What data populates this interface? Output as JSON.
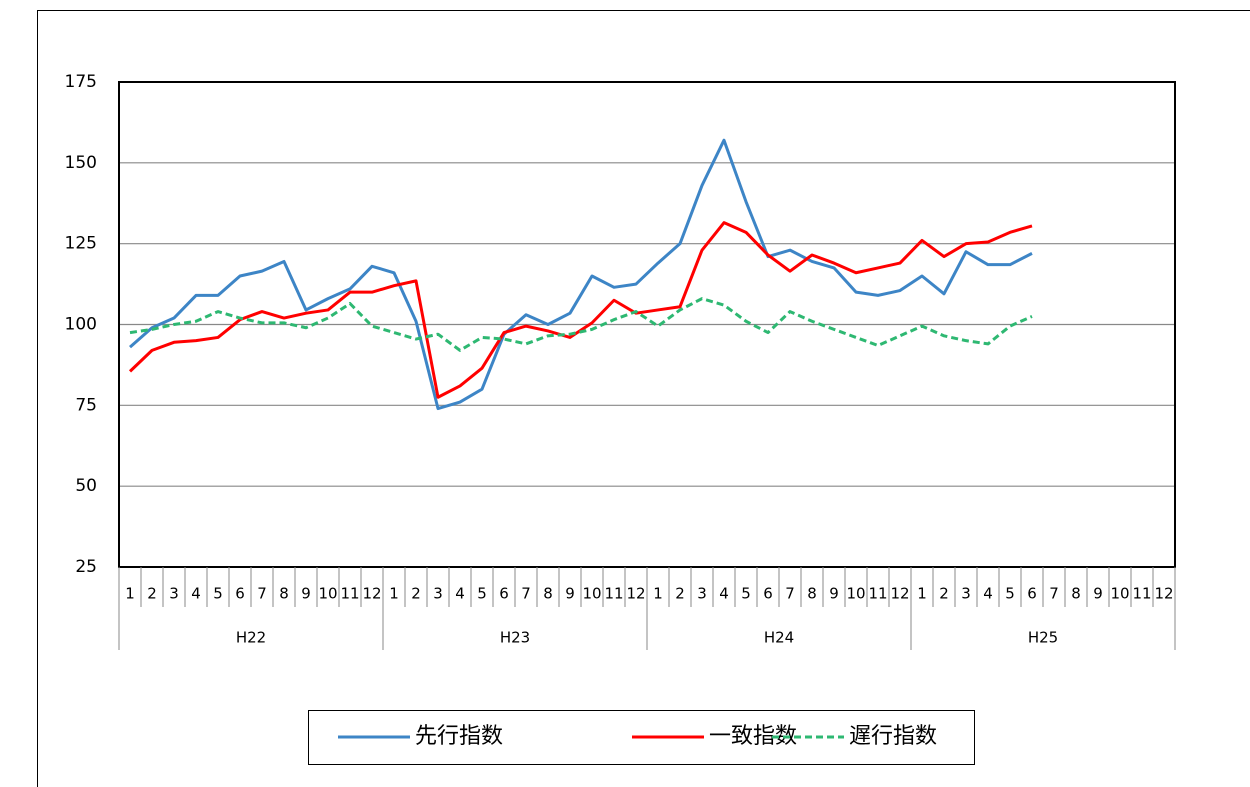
{
  "chart_data": {
    "type": "line",
    "categories": [
      "1",
      "2",
      "3",
      "4",
      "5",
      "6",
      "7",
      "8",
      "9",
      "10",
      "11",
      "12",
      "1",
      "2",
      "3",
      "4",
      "5",
      "6",
      "7",
      "8",
      "9",
      "10",
      "11",
      "12",
      "1",
      "2",
      "3",
      "4",
      "5",
      "6",
      "7",
      "8",
      "9",
      "10",
      "11",
      "12",
      "1",
      "2",
      "3",
      "4",
      "5",
      "6",
      "7",
      "8",
      "9",
      "10",
      "11",
      "12"
    ],
    "category_groups": [
      "H22",
      "H23",
      "H24",
      "H25"
    ],
    "series": [
      {
        "name": "先行指数",
        "color": "#3d85c6",
        "style": "solid",
        "values": [
          93,
          99,
          102,
          109,
          109,
          115,
          116.5,
          119.5,
          104.5,
          108,
          111,
          118,
          116,
          101,
          74,
          76,
          80,
          97,
          103,
          100,
          103.5,
          115,
          111.5,
          112.5,
          119,
          125,
          143,
          157,
          138,
          121,
          123,
          119.5,
          117.5,
          110,
          109,
          110.5,
          115,
          109.5,
          122.5,
          118.5,
          118.5,
          122,
          null,
          null,
          null,
          null,
          null,
          null
        ]
      },
      {
        "name": "一致指数",
        "color": "#ff0000",
        "style": "solid",
        "values": [
          85.5,
          92,
          94.5,
          95,
          96,
          101.5,
          104,
          102,
          103.5,
          104.5,
          110,
          110,
          112,
          113.5,
          77.5,
          81,
          86.5,
          97.5,
          99.5,
          98,
          96,
          100.5,
          107.5,
          103.5,
          104.5,
          105.5,
          123,
          131.5,
          128.5,
          121.5,
          116.5,
          121.5,
          119,
          116,
          117.5,
          119,
          126,
          121,
          125,
          125.5,
          128.5,
          130.5,
          null,
          null,
          null,
          null,
          null,
          null
        ]
      },
      {
        "name": "遅行指数",
        "color": "#2eb872",
        "style": "dashed",
        "values": [
          97.5,
          98.5,
          100,
          101,
          104,
          102,
          100.5,
          100.5,
          99,
          102,
          106.5,
          99.5,
          97.5,
          95.5,
          97,
          92,
          96,
          95.5,
          94,
          96.5,
          97,
          98.5,
          101.5,
          104,
          99.5,
          104.5,
          108,
          106,
          101,
          97.5,
          104,
          101,
          98.5,
          96,
          93.5,
          96.5,
          99.5,
          96.5,
          95,
          94,
          99.5,
          102.5,
          null,
          null,
          null,
          null,
          null,
          null
        ]
      }
    ],
    "ylim": [
      25,
      175
    ],
    "yticks": [
      25,
      50,
      75,
      100,
      125,
      150,
      175
    ],
    "grid": true,
    "legend": "bottom"
  }
}
